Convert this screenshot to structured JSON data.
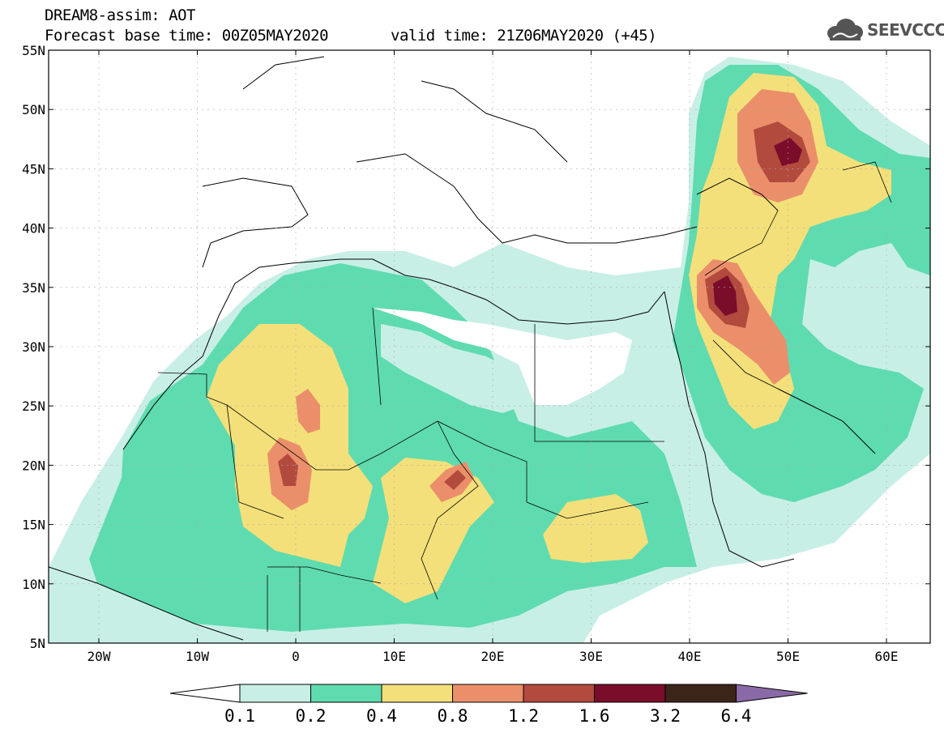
{
  "header": {
    "title": "DREAM8-assim: AOT",
    "base_time": "Forecast base time: 00Z05MAY2020",
    "valid_time": "valid time: 21Z06MAY2020 (+45)"
  },
  "logo": {
    "text": "SEEVCCC",
    "icon": "cloud-icon"
  },
  "map": {
    "lat_labels": [
      "55N",
      "50N",
      "45N",
      "40N",
      "35N",
      "30N",
      "25N",
      "20N",
      "15N",
      "10N",
      "5N"
    ],
    "lon_labels": [
      "20W",
      "10W",
      "0",
      "10E",
      "20E",
      "30E",
      "40E",
      "50E",
      "60E"
    ]
  },
  "legend": {
    "labels": [
      "0.1",
      "0.2",
      "0.4",
      "0.8",
      "1.2",
      "1.6",
      "3.2",
      "6.4"
    ],
    "colors": [
      "#ffffff",
      "#c8efe6",
      "#5fdbb0",
      "#f4e07a",
      "#eb8f6a",
      "#b34a3e",
      "#7a0d2a",
      "#3b2418",
      "#8a6aa6"
    ]
  }
}
